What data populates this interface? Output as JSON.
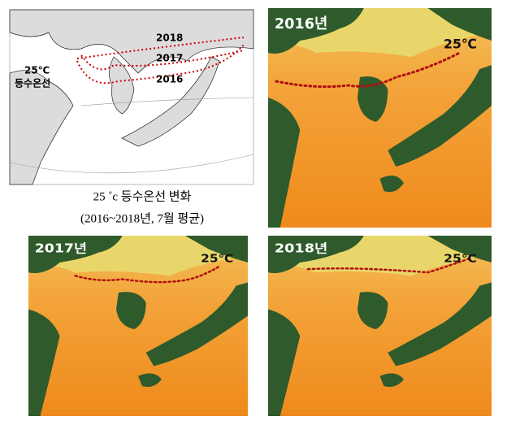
{
  "legend_map": {
    "isotherm_label": "25℃",
    "isotherm_label_2": "등수온선",
    "years": [
      "2018",
      "2017",
      "2016"
    ]
  },
  "caption": {
    "line1": "25 ˚c 등수온선 변화",
    "line2": "(2016~2018년, 7월 평균)"
  },
  "panels": [
    {
      "year": "2016년",
      "isotherm": "25℃"
    },
    {
      "year": "2017년",
      "isotherm": "25℃"
    },
    {
      "year": "2018년",
      "isotherm": "25℃"
    }
  ]
}
